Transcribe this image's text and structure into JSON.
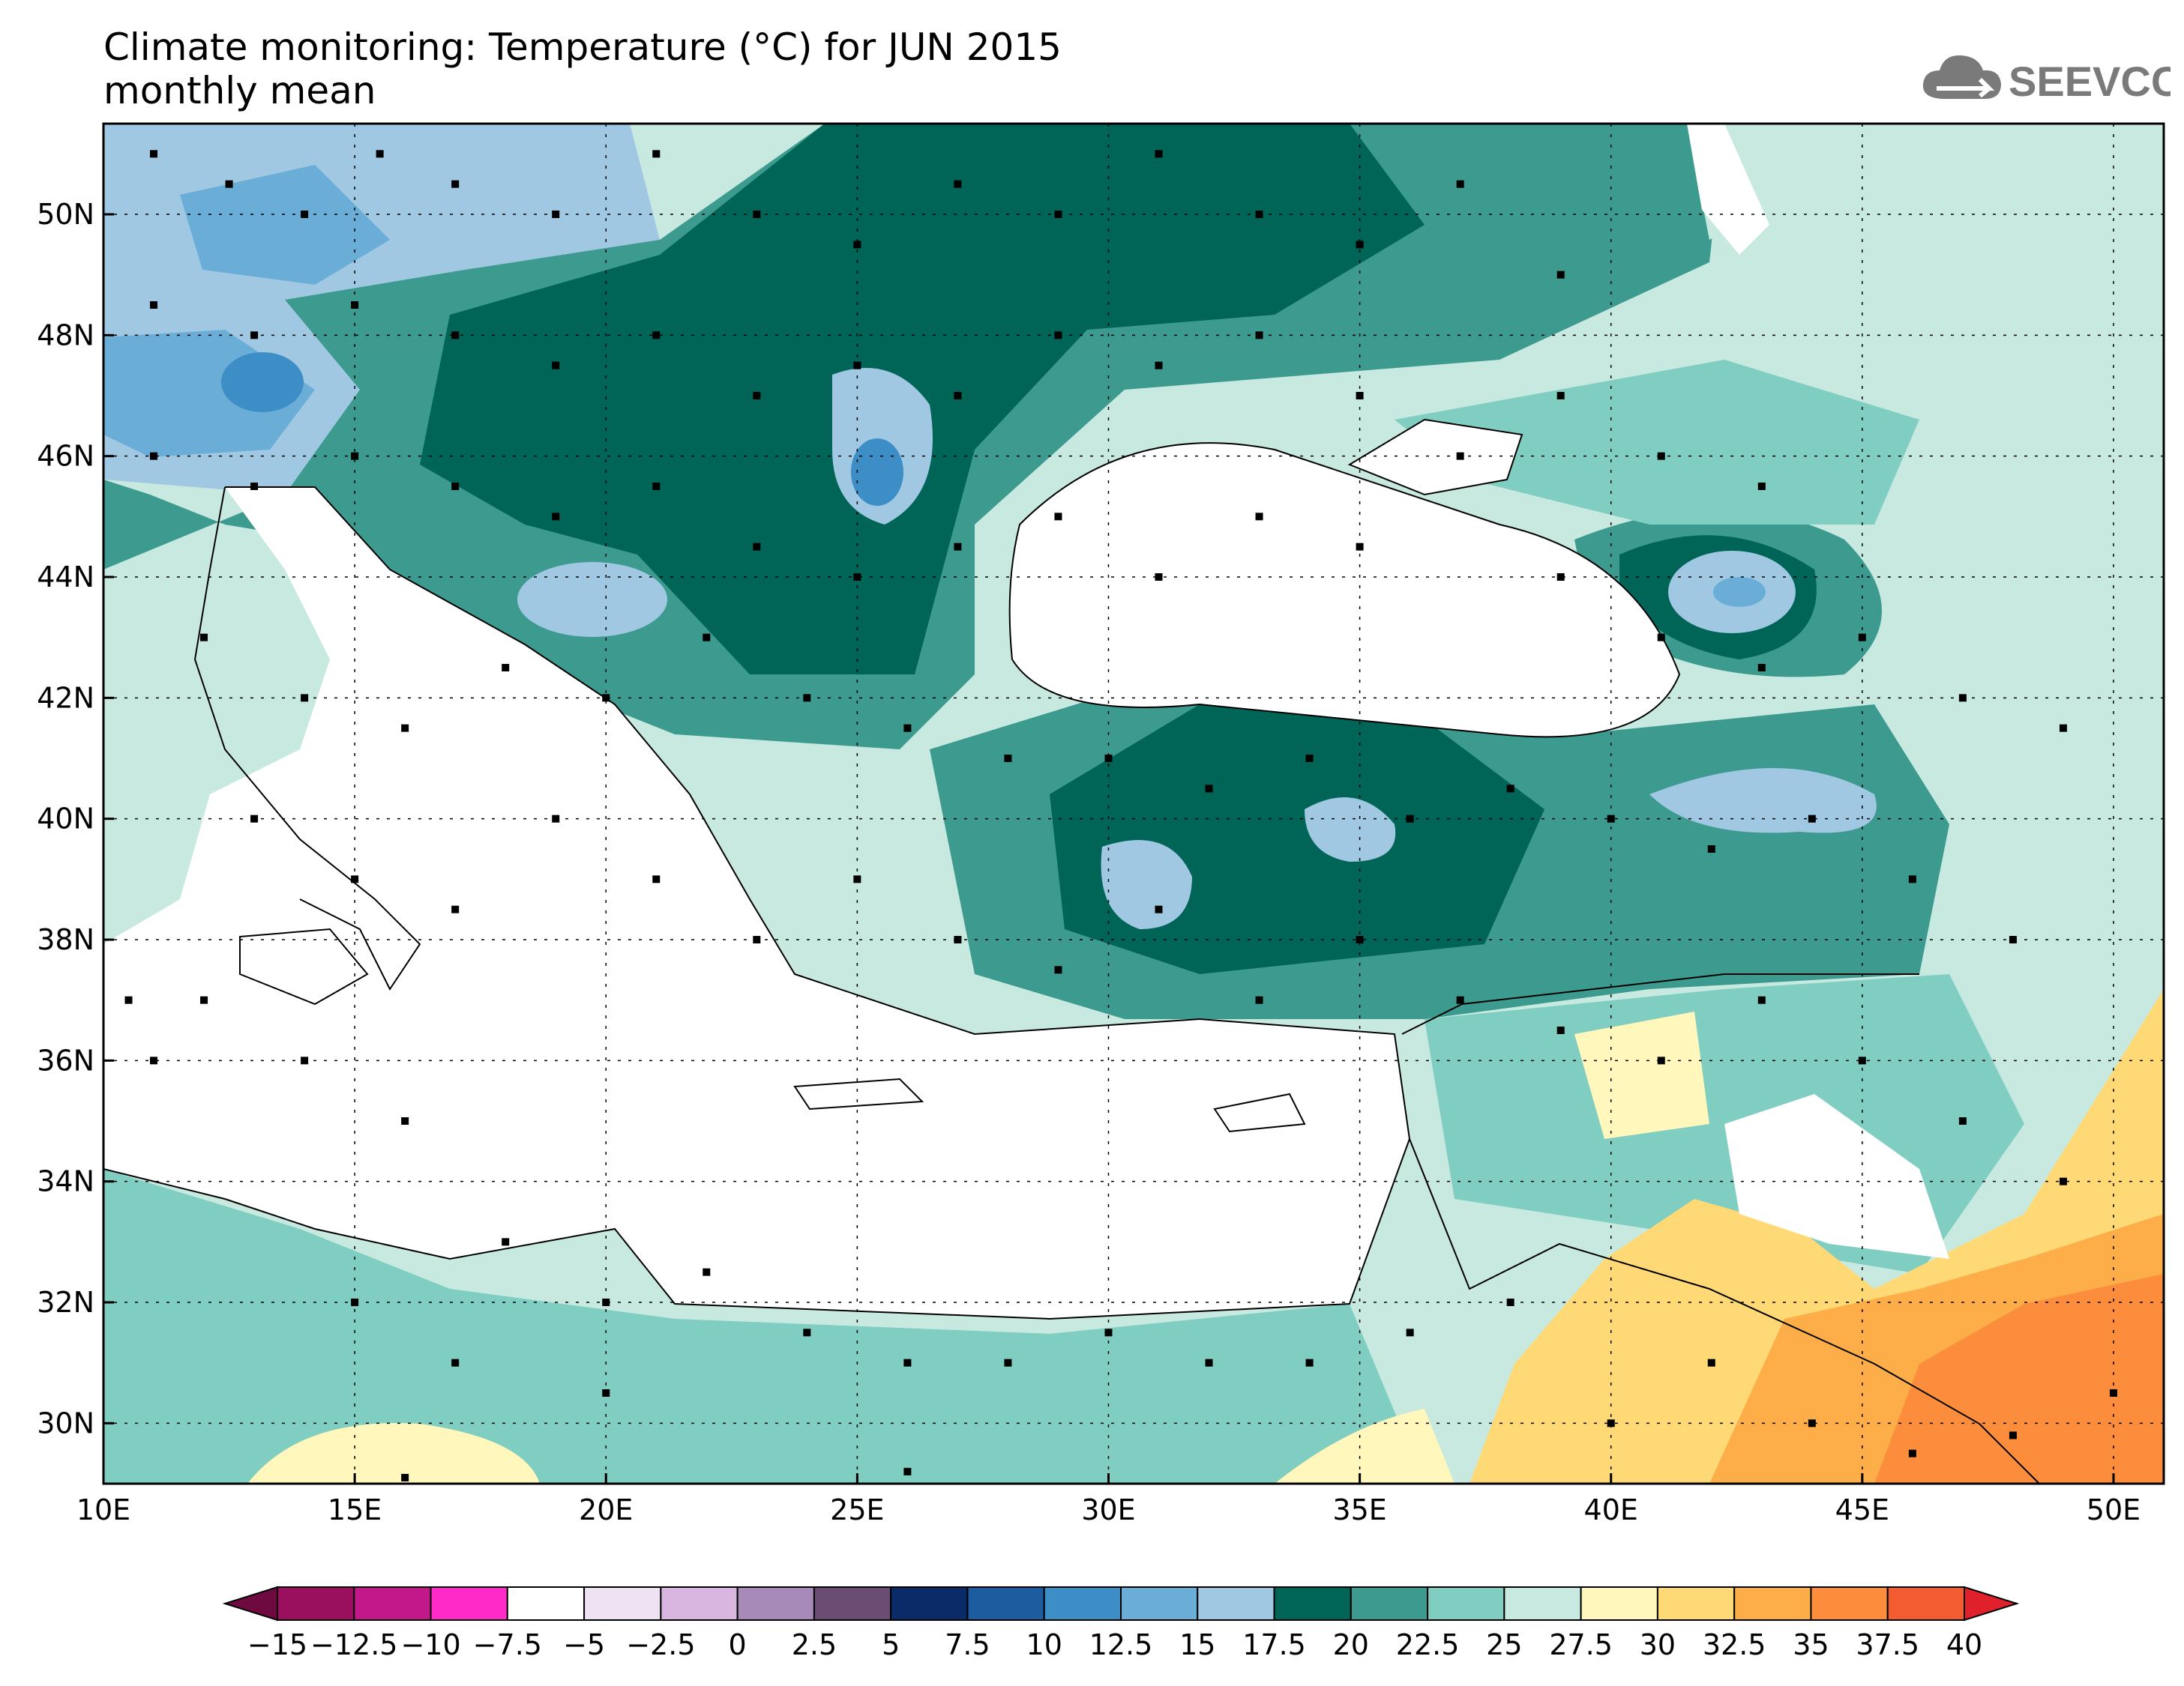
{
  "title": {
    "line1": "Climate monitoring: Temperature (°C) for JUN 2015",
    "line2": "monthly mean"
  },
  "logo": {
    "text": "SEEVCCC",
    "icon": "cloud-icon"
  },
  "map": {
    "lon_range": [
      10,
      51
    ],
    "lat_range": [
      29,
      51.5
    ],
    "lon_ticks": [
      "10E",
      "15E",
      "20E",
      "25E",
      "30E",
      "35E",
      "40E",
      "45E",
      "50E"
    ],
    "lat_ticks": [
      "30N",
      "32N",
      "34N",
      "36N",
      "38N",
      "40N",
      "42N",
      "44N",
      "46N",
      "48N",
      "50N"
    ]
  },
  "colorbar": {
    "labels": [
      "−15",
      "−12.5",
      "−10",
      "−7.5",
      "−5",
      "−2.5",
      "0",
      "2.5",
      "5",
      "7.5",
      "10",
      "12.5",
      "15",
      "17.5",
      "20",
      "22.5",
      "25",
      "27.5",
      "30",
      "32.5",
      "35",
      "37.5",
      "40"
    ],
    "colors": [
      "#9a0f5e",
      "#c2188a",
      "#ff2ac8",
      "#ffffff",
      "#efe2f2",
      "#d9b6e0",
      "#a88ab9",
      "#6b4d73",
      "#0a2a68",
      "#1c5da0",
      "#3d8ec6",
      "#6aaed8",
      "#a0c8e2",
      "#006457",
      "#3c9a8e",
      "#80cdc1",
      "#c7e9e0",
      "#fff7bc",
      "#fed976",
      "#fdae49",
      "#fc8d3c",
      "#f25c30"
    ],
    "low_arrow_color": "#6e0a3f",
    "high_arrow_color": "#e0202a"
  },
  "chart_data": {
    "type": "heatmap",
    "title": "Climate monitoring: Temperature (°C) for JUN 2015",
    "subtitle": "monthly mean",
    "xlabel": "",
    "ylabel": "",
    "xlim": [
      10,
      51
    ],
    "ylim": [
      29,
      51.5
    ],
    "units": "°C",
    "levels": [
      -15,
      -12.5,
      -10,
      -7.5,
      -5,
      -2.5,
      0,
      2.5,
      5,
      7.5,
      10,
      12.5,
      15,
      17.5,
      20,
      22.5,
      25,
      27.5,
      30,
      32.5,
      35,
      37.5,
      40
    ],
    "regions": [
      {
        "lon": [
          10,
          20
        ],
        "lat": [
          45,
          51.5
        ],
        "value": 16
      },
      {
        "lon": [
          13,
          14
        ],
        "lat": [
          47,
          47.5
        ],
        "value": 11
      },
      {
        "lon": [
          18,
          30
        ],
        "lat": [
          45,
          51
        ],
        "value": 19
      },
      {
        "lon": [
          25,
          26
        ],
        "lat": [
          45,
          46.5
        ],
        "value": 10
      },
      {
        "lon": [
          30,
          38
        ],
        "lat": [
          46,
          51
        ],
        "value": 21
      },
      {
        "lon": [
          38,
          48
        ],
        "lat": [
          44,
          49
        ],
        "value": 25
      },
      {
        "lon": [
          42,
          43
        ],
        "lat": [
          43.5,
          44
        ],
        "value": 15
      },
      {
        "lon": [
          29,
          38
        ],
        "lat": [
          37,
          41
        ],
        "value": 19
      },
      {
        "lon": [
          31,
          32
        ],
        "lat": [
          38.5,
          39.5
        ],
        "value": 16
      },
      {
        "lon": [
          38,
          45
        ],
        "lat": [
          38,
          41
        ],
        "value": 21
      },
      {
        "lon": [
          35,
          45
        ],
        "lat": [
          33,
          37
        ],
        "value": 27
      },
      {
        "lon": [
          40,
          51
        ],
        "lat": [
          29,
          34
        ],
        "value": 33
      },
      {
        "lon": [
          46,
          51
        ],
        "lat": [
          29,
          31
        ],
        "value": 36
      },
      {
        "lon": [
          10,
          35
        ],
        "lat": [
          29,
          33
        ],
        "value": 27
      }
    ],
    "stations": [
      [
        11,
        51
      ],
      [
        12.5,
        50.5
      ],
      [
        14,
        50
      ],
      [
        15.5,
        51
      ],
      [
        17,
        50.5
      ],
      [
        19,
        50
      ],
      [
        21,
        51
      ],
      [
        23,
        50
      ],
      [
        25,
        49.5
      ],
      [
        27,
        50.5
      ],
      [
        29,
        50
      ],
      [
        31,
        51
      ],
      [
        33,
        50
      ],
      [
        35,
        49.5
      ],
      [
        37,
        50.5
      ],
      [
        39,
        49
      ],
      [
        11,
        48.5
      ],
      [
        13,
        48
      ],
      [
        15,
        48.5
      ],
      [
        17,
        48
      ],
      [
        19,
        47.5
      ],
      [
        21,
        48
      ],
      [
        23,
        47
      ],
      [
        25,
        47.5
      ],
      [
        27,
        47
      ],
      [
        29,
        48
      ],
      [
        31,
        47.5
      ],
      [
        33,
        48
      ],
      [
        35,
        47
      ],
      [
        37,
        46
      ],
      [
        39,
        47
      ],
      [
        41,
        46
      ],
      [
        43,
        45.5
      ],
      [
        11,
        46
      ],
      [
        13,
        45.5
      ],
      [
        15,
        46
      ],
      [
        17,
        45.5
      ],
      [
        19,
        45
      ],
      [
        21,
        45.5
      ],
      [
        23,
        44.5
      ],
      [
        25,
        44
      ],
      [
        27,
        44.5
      ],
      [
        29,
        45
      ],
      [
        31,
        44
      ],
      [
        33,
        45
      ],
      [
        35,
        44.5
      ],
      [
        39,
        44
      ],
      [
        41,
        43
      ],
      [
        43,
        42.5
      ],
      [
        45,
        43
      ],
      [
        47,
        42
      ],
      [
        49,
        41.5
      ],
      [
        12,
        43
      ],
      [
        14,
        42
      ],
      [
        16,
        41.5
      ],
      [
        18,
        42.5
      ],
      [
        20,
        42
      ],
      [
        22,
        43
      ],
      [
        24,
        42
      ],
      [
        26,
        41.5
      ],
      [
        28,
        41
      ],
      [
        30,
        41
      ],
      [
        32,
        40.5
      ],
      [
        34,
        41
      ],
      [
        36,
        40
      ],
      [
        38,
        40.5
      ],
      [
        40,
        40
      ],
      [
        42,
        39.5
      ],
      [
        44,
        40
      ],
      [
        46,
        39
      ],
      [
        48,
        38
      ],
      [
        13,
        40
      ],
      [
        15,
        39
      ],
      [
        17,
        38.5
      ],
      [
        19,
        40
      ],
      [
        21,
        39
      ],
      [
        23,
        38
      ],
      [
        25,
        39
      ],
      [
        27,
        38
      ],
      [
        29,
        37.5
      ],
      [
        31,
        38.5
      ],
      [
        33,
        37
      ],
      [
        35,
        38
      ],
      [
        37,
        37
      ],
      [
        39,
        36.5
      ],
      [
        41,
        36
      ],
      [
        43,
        37
      ],
      [
        45,
        36
      ],
      [
        47,
        35
      ],
      [
        49,
        34
      ],
      [
        12,
        37
      ],
      [
        14,
        36
      ],
      [
        16,
        35
      ],
      [
        18,
        33
      ],
      [
        20,
        32
      ],
      [
        22,
        32.5
      ],
      [
        24,
        31.5
      ],
      [
        26,
        31
      ],
      [
        28,
        31
      ],
      [
        30,
        31.5
      ],
      [
        32,
        31
      ],
      [
        34,
        31
      ],
      [
        36,
        31.5
      ],
      [
        38,
        32
      ],
      [
        40,
        30
      ],
      [
        42,
        31
      ],
      [
        44,
        30
      ],
      [
        46,
        29.5
      ],
      [
        48,
        29.8
      ],
      [
        50,
        30.5
      ],
      [
        10.5,
        37
      ],
      [
        11,
        36
      ],
      [
        15,
        32
      ],
      [
        17,
        31
      ],
      [
        20,
        30.5
      ],
      [
        26,
        29.2
      ],
      [
        16,
        29.1
      ]
    ]
  }
}
